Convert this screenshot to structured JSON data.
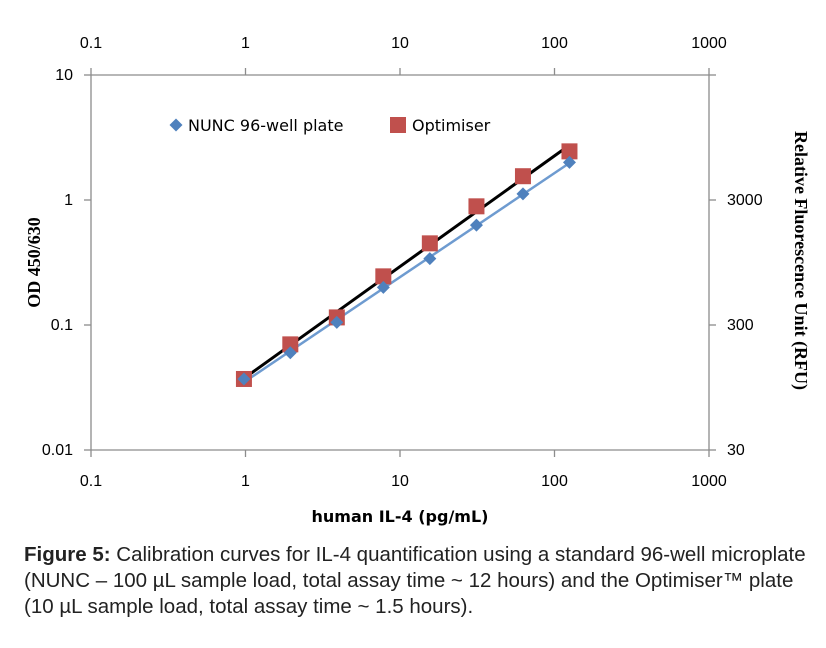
{
  "chart_data": {
    "type": "scatter",
    "x_scale": "log",
    "y_scale": "log",
    "xlim": [
      0.1,
      1000
    ],
    "ylim": [
      0.01,
      10
    ],
    "x_ticks": [
      "0.1",
      "1",
      "10",
      "100",
      "1000"
    ],
    "y_ticks": [
      "0.01",
      "0.1",
      "1",
      "10"
    ],
    "y2_ticks": [
      "30",
      "300",
      "3000"
    ],
    "xlabel": "human IL-4 (pg/mL)",
    "ylabel": "OD 450/630",
    "y2label": "Relative Fluorescence  Unit (RFU)",
    "legend_position": "top",
    "grid": false,
    "series": [
      {
        "name": "NUNC 96-well plate",
        "marker": "diamond",
        "color": "#4F81BD",
        "line_color": "#6E9BD0",
        "x": [
          0.977,
          1.95,
          3.9,
          7.8,
          15.6,
          31.25,
          62.5,
          125
        ],
        "y": [
          0.037,
          0.06,
          0.105,
          0.2,
          0.34,
          0.63,
          1.12,
          2.0
        ]
      },
      {
        "name": "Optimiser",
        "marker": "square",
        "color": "#C0504D",
        "line_color": "#000000",
        "x": [
          0.977,
          1.95,
          3.9,
          7.8,
          15.6,
          31.25,
          62.5,
          125
        ],
        "y": [
          0.037,
          0.07,
          0.115,
          0.245,
          0.45,
          0.89,
          1.55,
          2.45
        ]
      }
    ]
  },
  "caption": {
    "label": "Figure 5:",
    "text": " Calibration curves for IL-4 quantification using a standard 96-well microplate (NUNC – 100 µL sample load, total assay time ~ 12 hours) and the Optimiser™ plate (10 µL sample load, total assay time ~ 1.5 hours)."
  }
}
